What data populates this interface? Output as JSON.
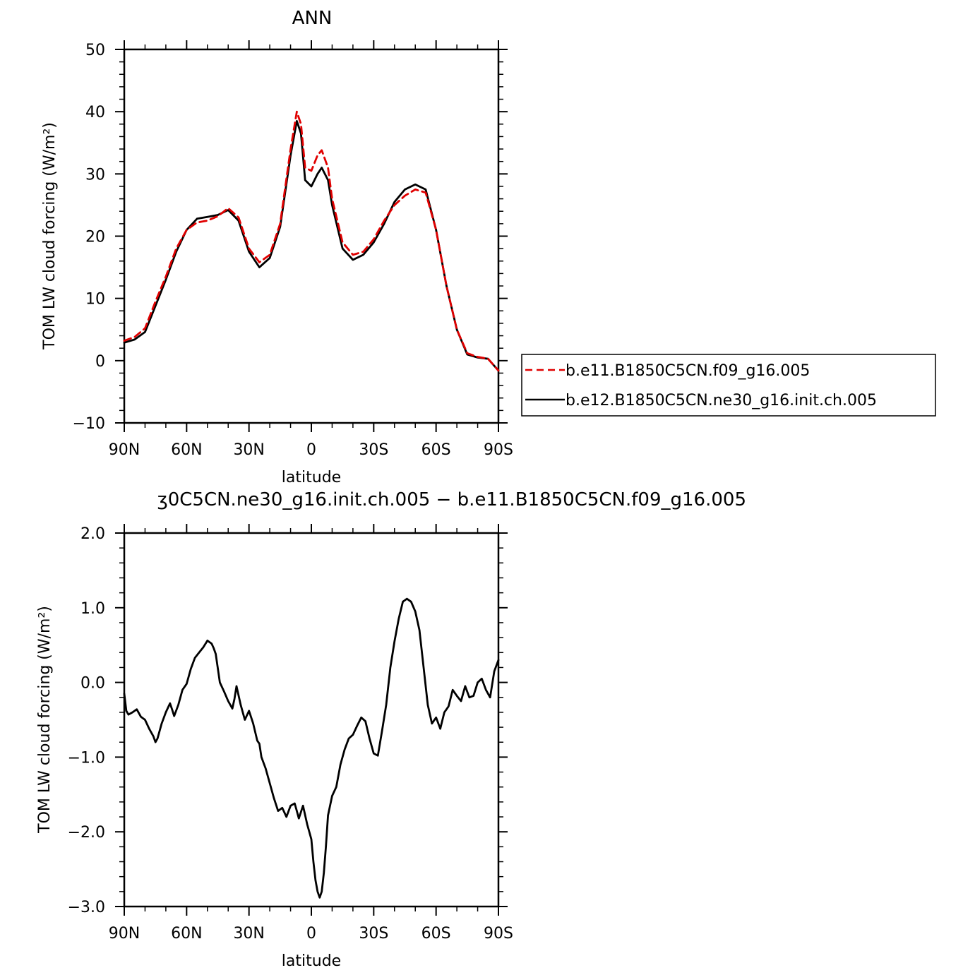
{
  "chart_data": [
    {
      "type": "line",
      "title": "ANN",
      "xlabel": "latitude",
      "ylabel": "TOM LW cloud forcing (W/m²)",
      "xlim": [
        90,
        -90
      ],
      "ylim": [
        -10,
        50
      ],
      "x_tick_values": [
        90,
        60,
        30,
        0,
        -30,
        -60,
        -90
      ],
      "x_tick_labels": [
        "90N",
        "60N",
        "30N",
        "0",
        "30S",
        "60S",
        "90S"
      ],
      "y_tick_values": [
        -10,
        0,
        10,
        20,
        30,
        40,
        50
      ],
      "y_tick_labels": [
        "−10",
        "0",
        "10",
        "20",
        "30",
        "40",
        "50"
      ],
      "legend_position": "right",
      "x": [
        90,
        85,
        80,
        75,
        70,
        65,
        60,
        55,
        50,
        45,
        40,
        35,
        30,
        25,
        20,
        15,
        10,
        7,
        5,
        3,
        0,
        -3,
        -5,
        -8,
        -10,
        -15,
        -20,
        -25,
        -30,
        -35,
        -40,
        -45,
        -50,
        -55,
        -60,
        -65,
        -70,
        -75,
        -80,
        -85,
        -90
      ],
      "series": [
        {
          "name": "b.e11.B1850C5CN.f09_g16.005",
          "color": "#e00000",
          "dash": true,
          "values": [
            3.2,
            3.8,
            5.2,
            9.5,
            13.5,
            18.0,
            21.0,
            22.2,
            22.5,
            23.2,
            24.5,
            23.0,
            18.0,
            15.8,
            17.0,
            22.0,
            34.0,
            40.0,
            38.0,
            31.0,
            30.5,
            33.0,
            33.8,
            31.0,
            26.0,
            19.0,
            17.0,
            17.5,
            19.5,
            22.5,
            25.0,
            26.5,
            27.5,
            27.0,
            21.0,
            12.0,
            5.0,
            1.2,
            0.6,
            0.3,
            -1.6
          ]
        },
        {
          "name": "b.e12.B1850C5CN.ne30_g16.init.ch.005",
          "color": "#000000",
          "dash": false,
          "values": [
            2.9,
            3.4,
            4.6,
            8.8,
            13.0,
            17.5,
            21.0,
            22.8,
            23.1,
            23.4,
            24.2,
            22.5,
            17.5,
            15.0,
            16.5,
            21.5,
            33.0,
            38.5,
            36.5,
            29.0,
            28.0,
            30.0,
            31.0,
            29.0,
            25.0,
            18.0,
            16.2,
            17.0,
            19.0,
            22.0,
            25.5,
            27.5,
            28.3,
            27.5,
            21.0,
            12.0,
            5.0,
            1.0,
            0.5,
            0.3,
            -1.6
          ]
        }
      ]
    },
    {
      "type": "line",
      "title": "ʒ0C5CN.ne30_g16.init.ch.005 − b.e11.B1850C5CN.f09_g16.005",
      "xlabel": "latitude",
      "ylabel": "TOM LW cloud forcing (W/m²)",
      "xlim": [
        90,
        -90
      ],
      "ylim": [
        -3.0,
        2.0
      ],
      "x_tick_values": [
        90,
        60,
        30,
        0,
        -30,
        -60,
        -90
      ],
      "x_tick_labels": [
        "90N",
        "60N",
        "30N",
        "0",
        "30S",
        "60S",
        "90S"
      ],
      "y_tick_values": [
        -3.0,
        -2.0,
        -1.0,
        0.0,
        1.0,
        2.0
      ],
      "y_tick_labels": [
        "−3.0",
        "−2.0",
        "−1.0",
        "0.0",
        "1.0",
        "2.0"
      ],
      "x": [
        90,
        89,
        88,
        86,
        84,
        82,
        80,
        78,
        76,
        75,
        74,
        72,
        70,
        68,
        67,
        66,
        64,
        62,
        60,
        58,
        56,
        54,
        52,
        50,
        48,
        47,
        46,
        44,
        42,
        40,
        38,
        37,
        36,
        34,
        32,
        30,
        28,
        26,
        25,
        24,
        22,
        20,
        18,
        16,
        14,
        12,
        10,
        8,
        7,
        6,
        4,
        2,
        1,
        0,
        -1,
        -2,
        -3,
        -4,
        -5,
        -6,
        -7,
        -8,
        -10,
        -12,
        -14,
        -16,
        -18,
        -20,
        -22,
        -24,
        -26,
        -28,
        -30,
        -32,
        -34,
        -36,
        -38,
        -40,
        -42,
        -44,
        -46,
        -48,
        -50,
        -52,
        -54,
        -56,
        -58,
        -60,
        -62,
        -64,
        -66,
        -68,
        -70,
        -72,
        -74,
        -76,
        -78,
        -80,
        -82,
        -84,
        -86,
        -88,
        -90
      ],
      "series": [
        {
          "name": "",
          "color": "#000000",
          "dash": false,
          "values": [
            -0.15,
            -0.38,
            -0.43,
            -0.4,
            -0.36,
            -0.46,
            -0.5,
            -0.62,
            -0.72,
            -0.8,
            -0.75,
            -0.55,
            -0.4,
            -0.28,
            -0.36,
            -0.45,
            -0.3,
            -0.1,
            -0.02,
            0.18,
            0.33,
            0.4,
            0.47,
            0.56,
            0.52,
            0.46,
            0.38,
            0.0,
            -0.12,
            -0.25,
            -0.35,
            -0.22,
            -0.05,
            -0.3,
            -0.5,
            -0.38,
            -0.55,
            -0.78,
            -0.82,
            -1.0,
            -1.15,
            -1.35,
            -1.55,
            -1.72,
            -1.68,
            -1.8,
            -1.65,
            -1.62,
            -1.72,
            -1.82,
            -1.65,
            -1.9,
            -2.0,
            -2.1,
            -2.4,
            -2.65,
            -2.8,
            -2.88,
            -2.8,
            -2.55,
            -2.2,
            -1.78,
            -1.52,
            -1.4,
            -1.1,
            -0.9,
            -0.75,
            -0.7,
            -0.58,
            -0.47,
            -0.52,
            -0.75,
            -0.95,
            -0.98,
            -0.65,
            -0.3,
            0.2,
            0.55,
            0.85,
            1.08,
            1.12,
            1.08,
            0.95,
            0.7,
            0.2,
            -0.3,
            -0.55,
            -0.47,
            -0.62,
            -0.4,
            -0.32,
            -0.1,
            -0.18,
            -0.25,
            -0.05,
            -0.2,
            -0.18,
            0.0,
            0.05,
            -0.1,
            -0.2,
            0.15,
            0.3
          ]
        }
      ]
    }
  ]
}
